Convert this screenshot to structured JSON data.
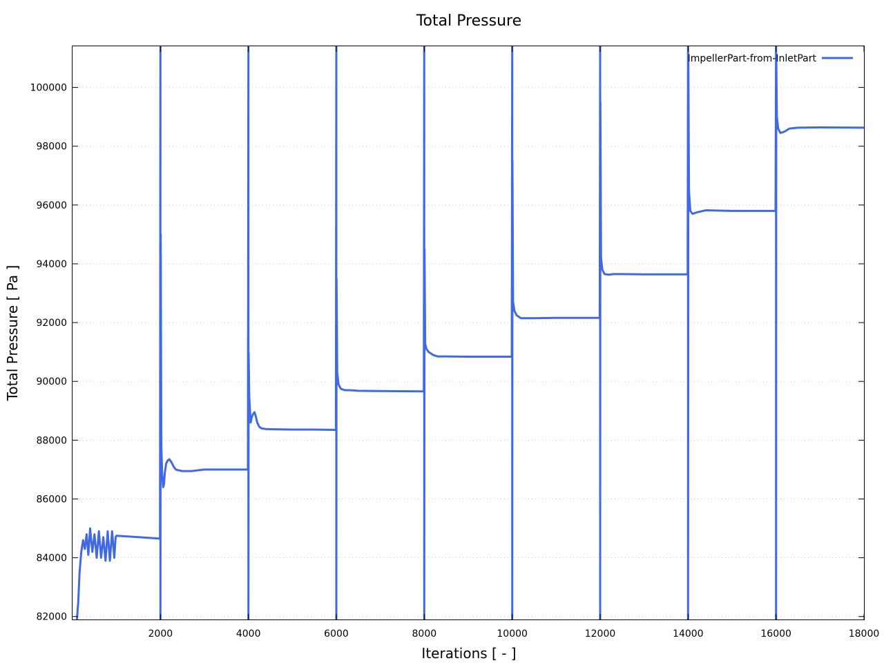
{
  "chart_data": {
    "type": "line",
    "title": "Total Pressure",
    "xlabel": "Iterations [ - ]",
    "ylabel": "Total Pressure [ Pa ]",
    "xlim": [
      0,
      18000
    ],
    "ylim": [
      81900,
      101400
    ],
    "xticks": [
      2000,
      4000,
      6000,
      8000,
      10000,
      12000,
      14000,
      16000,
      18000
    ],
    "yticks": [
      82000,
      84000,
      86000,
      88000,
      90000,
      92000,
      94000,
      96000,
      98000,
      100000
    ],
    "grid": true,
    "legend_position": "top-right",
    "series": [
      {
        "name": "ImpellerPart-from-InletPart",
        "color": "#4169e1",
        "x": [
          100,
          130,
          160,
          200,
          240,
          280,
          320,
          360,
          400,
          450,
          500,
          550,
          600,
          650,
          700,
          750,
          800,
          850,
          900,
          950,
          980,
          1000,
          1500,
          1990,
          2000,
          2000,
          2005,
          2020,
          2040,
          2060,
          2080,
          2100,
          2130,
          2160,
          2200,
          2250,
          2300,
          2350,
          2400,
          2500,
          2700,
          3000,
          3500,
          3990,
          4000,
          4000,
          4005,
          4020,
          4050,
          4080,
          4110,
          4140,
          4170,
          4200,
          4250,
          4300,
          4400,
          4600,
          5000,
          5500,
          5990,
          6000,
          6000,
          6005,
          6020,
          6050,
          6100,
          6150,
          6200,
          6300,
          6400,
          6500,
          7000,
          7990,
          8000,
          8000,
          8005,
          8020,
          8050,
          8100,
          8200,
          8300,
          8500,
          9000,
          9990,
          10000,
          10000,
          10005,
          10020,
          10050,
          10100,
          10200,
          10300,
          10500,
          11000,
          11990,
          12000,
          12000,
          12005,
          12020,
          12050,
          12100,
          12200,
          12300,
          12500,
          13000,
          13990,
          14000,
          14000,
          14005,
          14020,
          14050,
          14100,
          14200,
          14400,
          15000,
          15990,
          16000,
          16000,
          16005,
          16020,
          16050,
          16100,
          16200,
          16300,
          16500,
          17000,
          18000
        ],
        "y": [
          81900,
          82500,
          83500,
          84200,
          84600,
          84300,
          84800,
          84100,
          85000,
          84200,
          84800,
          84000,
          84900,
          84000,
          84700,
          83900,
          84900,
          83900,
          84900,
          84000,
          84700,
          84750,
          84700,
          84650,
          101400,
          81900,
          95000,
          87800,
          86800,
          86400,
          86500,
          86900,
          87200,
          87300,
          87350,
          87250,
          87100,
          87000,
          86980,
          86950,
          86950,
          87000,
          87000,
          87000,
          101400,
          81900,
          91000,
          89500,
          88600,
          88800,
          88900,
          88950,
          88800,
          88600,
          88450,
          88400,
          88380,
          88370,
          88360,
          88360,
          88350,
          101400,
          81900,
          93500,
          90300,
          89900,
          89750,
          89720,
          89700,
          89700,
          89690,
          89680,
          89670,
          89660,
          101400,
          81900,
          94500,
          91300,
          91100,
          91000,
          90900,
          90850,
          90850,
          90840,
          90840,
          101400,
          81900,
          97500,
          92700,
          92400,
          92250,
          92150,
          92150,
          92150,
          92160,
          92160,
          101400,
          81900,
          99500,
          94200,
          93800,
          93650,
          93630,
          93650,
          93650,
          93640,
          93640,
          101400,
          81900,
          101000,
          96500,
          95800,
          95700,
          95750,
          95820,
          95800,
          95800,
          101400,
          81900,
          101000,
          99000,
          98600,
          98450,
          98500,
          98600,
          98630,
          98640,
          98630
        ]
      }
    ]
  }
}
